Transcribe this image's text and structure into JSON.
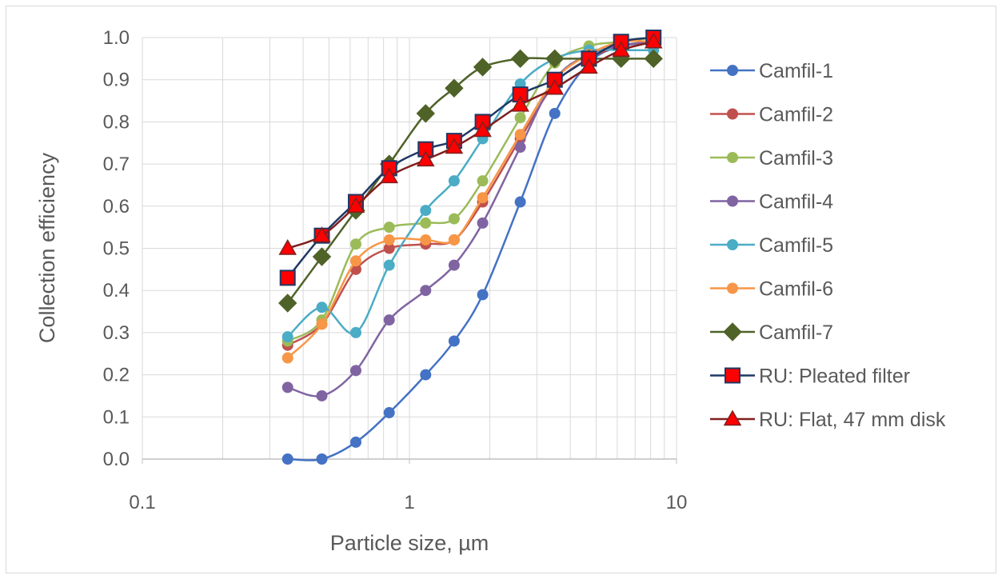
{
  "chart_data": {
    "type": "line",
    "title": "",
    "xlabel": "Particle size, µm",
    "ylabel": "Collection efficiency",
    "xscale": "log",
    "xlim": [
      0.1,
      10
    ],
    "ylim": [
      0,
      1
    ],
    "x_ticks": [
      "0.1",
      "1",
      "10"
    ],
    "y_ticks": [
      "0.0",
      "0.1",
      "0.2",
      "0.3",
      "0.4",
      "0.5",
      "0.6",
      "0.7",
      "0.8",
      "0.9",
      "1.0"
    ],
    "grid": "on",
    "legend_position": "right",
    "series": [
      {
        "name": "Camfil-1",
        "color": "#4472C4",
        "marker": "circle",
        "x": [
          0.35,
          0.47,
          0.63,
          0.84,
          1.15,
          1.47,
          1.88,
          2.6,
          3.5,
          4.7,
          6.2,
          8.2
        ],
        "y": [
          0.0,
          0.0,
          0.04,
          0.11,
          0.2,
          0.28,
          0.39,
          0.61,
          0.82,
          0.94,
          0.98,
          0.99
        ]
      },
      {
        "name": "Camfil-2",
        "color": "#C0504D",
        "marker": "circle",
        "x": [
          0.35,
          0.47,
          0.63,
          0.84,
          1.15,
          1.47,
          1.88,
          2.6,
          3.5,
          4.7,
          6.2,
          8.2
        ],
        "y": [
          0.27,
          0.32,
          0.45,
          0.5,
          0.51,
          0.52,
          0.61,
          0.76,
          0.89,
          0.95,
          0.98,
          0.99
        ]
      },
      {
        "name": "Camfil-3",
        "color": "#9BBB59",
        "marker": "circle",
        "x": [
          0.35,
          0.47,
          0.63,
          0.84,
          1.15,
          1.47,
          1.88,
          2.6,
          3.5,
          4.7,
          6.2,
          8.2
        ],
        "y": [
          0.28,
          0.33,
          0.51,
          0.55,
          0.56,
          0.57,
          0.66,
          0.81,
          0.94,
          0.98,
          0.99,
          1.0
        ]
      },
      {
        "name": "Camfil-4",
        "color": "#8064A2",
        "marker": "circle",
        "x": [
          0.35,
          0.47,
          0.63,
          0.84,
          1.15,
          1.47,
          1.88,
          2.6,
          3.5,
          4.7,
          6.2,
          8.2
        ],
        "y": [
          0.17,
          0.15,
          0.21,
          0.33,
          0.4,
          0.46,
          0.56,
          0.74,
          0.9,
          0.96,
          0.98,
          0.99
        ]
      },
      {
        "name": "Camfil-5",
        "color": "#4BACC6",
        "marker": "circle",
        "x": [
          0.35,
          0.47,
          0.63,
          0.84,
          1.15,
          1.47,
          1.88,
          2.6,
          3.5,
          4.7,
          6.2,
          8.2
        ],
        "y": [
          0.29,
          0.36,
          0.3,
          0.46,
          0.59,
          0.66,
          0.76,
          0.89,
          0.95,
          0.97,
          0.97,
          0.97
        ]
      },
      {
        "name": "Camfil-6",
        "color": "#F79646",
        "marker": "circle",
        "x": [
          0.35,
          0.47,
          0.63,
          0.84,
          1.15,
          1.47,
          1.88,
          2.6,
          3.5,
          4.7,
          6.2,
          8.2
        ],
        "y": [
          0.24,
          0.32,
          0.47,
          0.52,
          0.52,
          0.52,
          0.62,
          0.77,
          0.9,
          0.96,
          0.99,
          0.99
        ]
      },
      {
        "name": "Camfil-7",
        "color": "#4F6228",
        "marker": "diamond",
        "x": [
          0.35,
          0.47,
          0.63,
          0.84,
          1.15,
          1.47,
          1.88,
          2.6,
          3.5,
          4.7,
          6.2,
          8.2
        ],
        "y": [
          0.37,
          0.48,
          0.59,
          0.7,
          0.82,
          0.88,
          0.93,
          0.95,
          0.95,
          0.95,
          0.95,
          0.95
        ]
      },
      {
        "name": "RU: Pleated filter",
        "color": "#1F3864",
        "marker_fill": "#FF0000",
        "marker": "square",
        "x": [
          0.35,
          0.47,
          0.63,
          0.84,
          1.15,
          1.47,
          1.88,
          2.6,
          3.5,
          4.7,
          6.2,
          8.2
        ],
        "y": [
          0.43,
          0.53,
          0.61,
          0.69,
          0.735,
          0.755,
          0.8,
          0.865,
          0.9,
          0.95,
          0.99,
          1.0
        ]
      },
      {
        "name": "RU: Flat, 47 mm disk",
        "color": "#7F1F1F",
        "marker_fill": "#FF0000",
        "marker": "triangle",
        "x": [
          0.35,
          0.47,
          0.63,
          0.84,
          1.15,
          1.47,
          1.88,
          2.6,
          3.5,
          4.7,
          6.2,
          8.2
        ],
        "y": [
          0.5,
          0.53,
          0.6,
          0.67,
          0.71,
          0.74,
          0.78,
          0.84,
          0.88,
          0.93,
          0.97,
          0.99
        ]
      }
    ]
  }
}
